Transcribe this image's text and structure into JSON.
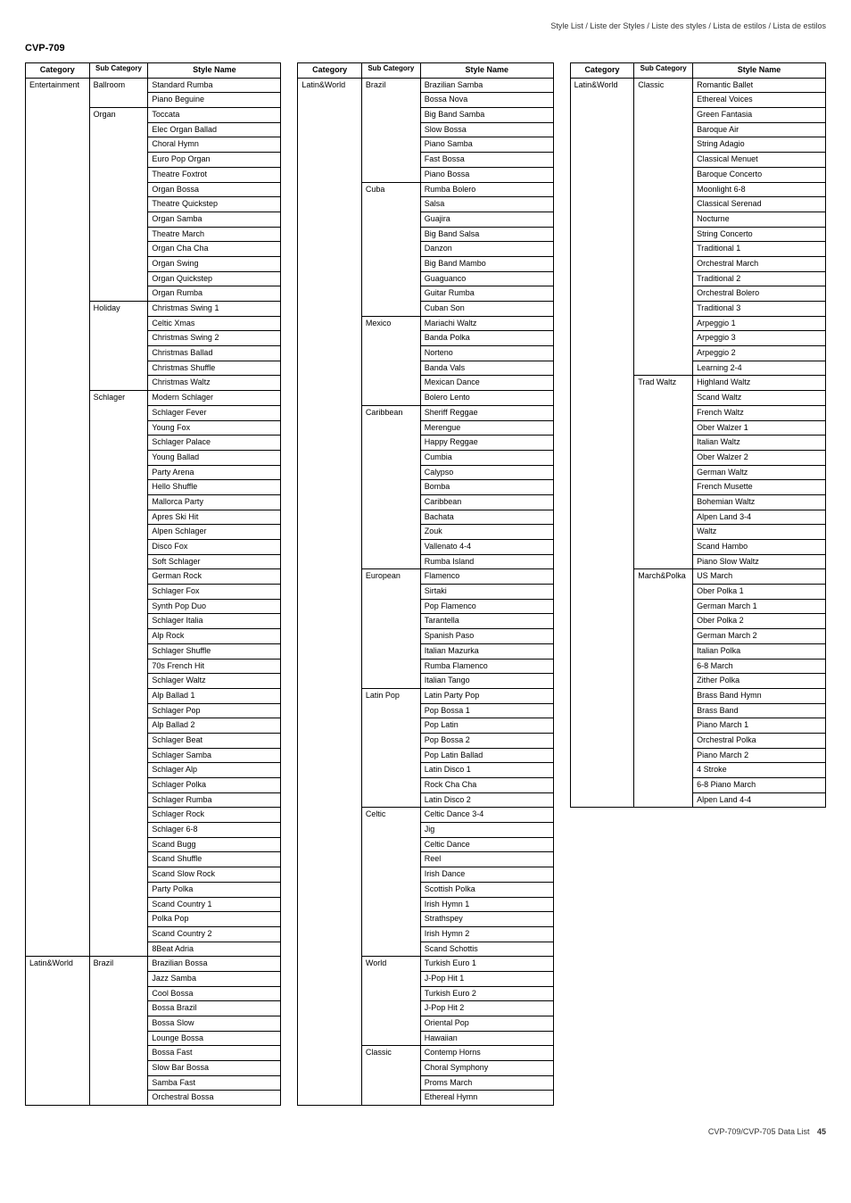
{
  "meta_line": "Style List / Liste der Styles / Liste des styles / Lista de estilos / Lista de estilos",
  "model": "CVP-709",
  "footer_text": "CVP-709/CVP-705 Data List",
  "page_number": "45",
  "headers": {
    "category": "Category",
    "sub": "Sub Category",
    "style": "Style Name"
  },
  "tables": [
    {
      "rows": [
        {
          "cat": "Entertainment",
          "sub": "Ballroom",
          "style": "Standard Rumba"
        },
        {
          "cat": "",
          "sub": "",
          "style": "Piano Beguine"
        },
        {
          "cat": "",
          "sub": "Organ",
          "style": "Toccata"
        },
        {
          "cat": "",
          "sub": "",
          "style": "Elec Organ Ballad"
        },
        {
          "cat": "",
          "sub": "",
          "style": "Choral Hymn"
        },
        {
          "cat": "",
          "sub": "",
          "style": "Euro Pop Organ"
        },
        {
          "cat": "",
          "sub": "",
          "style": "Theatre Foxtrot"
        },
        {
          "cat": "",
          "sub": "",
          "style": "Organ Bossa"
        },
        {
          "cat": "",
          "sub": "",
          "style": "Theatre Quickstep"
        },
        {
          "cat": "",
          "sub": "",
          "style": "Organ Samba"
        },
        {
          "cat": "",
          "sub": "",
          "style": "Theatre March"
        },
        {
          "cat": "",
          "sub": "",
          "style": "Organ Cha Cha"
        },
        {
          "cat": "",
          "sub": "",
          "style": "Organ Swing"
        },
        {
          "cat": "",
          "sub": "",
          "style": "Organ Quickstep"
        },
        {
          "cat": "",
          "sub": "",
          "style": "Organ Rumba"
        },
        {
          "cat": "",
          "sub": "Holiday",
          "style": "Christmas Swing 1"
        },
        {
          "cat": "",
          "sub": "",
          "style": "Celtic Xmas"
        },
        {
          "cat": "",
          "sub": "",
          "style": "Christmas Swing 2"
        },
        {
          "cat": "",
          "sub": "",
          "style": "Christmas Ballad"
        },
        {
          "cat": "",
          "sub": "",
          "style": "Christmas Shuffle"
        },
        {
          "cat": "",
          "sub": "",
          "style": "Christmas Waltz"
        },
        {
          "cat": "",
          "sub": "Schlager",
          "style": "Modern Schlager"
        },
        {
          "cat": "",
          "sub": "",
          "style": "Schlager Fever"
        },
        {
          "cat": "",
          "sub": "",
          "style": "Young Fox"
        },
        {
          "cat": "",
          "sub": "",
          "style": "Schlager Palace"
        },
        {
          "cat": "",
          "sub": "",
          "style": "Young Ballad"
        },
        {
          "cat": "",
          "sub": "",
          "style": "Party Arena"
        },
        {
          "cat": "",
          "sub": "",
          "style": "Hello Shuffle"
        },
        {
          "cat": "",
          "sub": "",
          "style": "Mallorca Party"
        },
        {
          "cat": "",
          "sub": "",
          "style": "Apres Ski Hit"
        },
        {
          "cat": "",
          "sub": "",
          "style": "Alpen Schlager"
        },
        {
          "cat": "",
          "sub": "",
          "style": "Disco Fox"
        },
        {
          "cat": "",
          "sub": "",
          "style": "Soft Schlager"
        },
        {
          "cat": "",
          "sub": "",
          "style": "German Rock"
        },
        {
          "cat": "",
          "sub": "",
          "style": "Schlager Fox"
        },
        {
          "cat": "",
          "sub": "",
          "style": "Synth Pop Duo"
        },
        {
          "cat": "",
          "sub": "",
          "style": "Schlager Italia"
        },
        {
          "cat": "",
          "sub": "",
          "style": "Alp Rock"
        },
        {
          "cat": "",
          "sub": "",
          "style": "Schlager Shuffle"
        },
        {
          "cat": "",
          "sub": "",
          "style": "70s French Hit"
        },
        {
          "cat": "",
          "sub": "",
          "style": "Schlager Waltz"
        },
        {
          "cat": "",
          "sub": "",
          "style": "Alp Ballad 1"
        },
        {
          "cat": "",
          "sub": "",
          "style": "Schlager Pop"
        },
        {
          "cat": "",
          "sub": "",
          "style": "Alp Ballad 2"
        },
        {
          "cat": "",
          "sub": "",
          "style": "Schlager Beat"
        },
        {
          "cat": "",
          "sub": "",
          "style": "Schlager Samba"
        },
        {
          "cat": "",
          "sub": "",
          "style": "Schlager Alp"
        },
        {
          "cat": "",
          "sub": "",
          "style": "Schlager Polka"
        },
        {
          "cat": "",
          "sub": "",
          "style": "Schlager Rumba"
        },
        {
          "cat": "",
          "sub": "",
          "style": "Schlager Rock"
        },
        {
          "cat": "",
          "sub": "",
          "style": "Schlager 6-8"
        },
        {
          "cat": "",
          "sub": "",
          "style": "Scand Bugg"
        },
        {
          "cat": "",
          "sub": "",
          "style": "Scand Shuffle"
        },
        {
          "cat": "",
          "sub": "",
          "style": "Scand Slow Rock"
        },
        {
          "cat": "",
          "sub": "",
          "style": "Party Polka"
        },
        {
          "cat": "",
          "sub": "",
          "style": "Scand Country 1"
        },
        {
          "cat": "",
          "sub": "",
          "style": "Polka Pop"
        },
        {
          "cat": "",
          "sub": "",
          "style": "Scand Country 2"
        },
        {
          "cat": "",
          "sub": "",
          "style": "8Beat Adria"
        },
        {
          "cat": "Latin&World",
          "sub": "Brazil",
          "style": "Brazilian Bossa"
        },
        {
          "cat": "",
          "sub": "",
          "style": "Jazz Samba"
        },
        {
          "cat": "",
          "sub": "",
          "style": "Cool Bossa"
        },
        {
          "cat": "",
          "sub": "",
          "style": "Bossa Brazil"
        },
        {
          "cat": "",
          "sub": "",
          "style": "Bossa Slow"
        },
        {
          "cat": "",
          "sub": "",
          "style": "Lounge Bossa"
        },
        {
          "cat": "",
          "sub": "",
          "style": "Bossa Fast"
        },
        {
          "cat": "",
          "sub": "",
          "style": "Slow Bar Bossa"
        },
        {
          "cat": "",
          "sub": "",
          "style": "Samba Fast"
        },
        {
          "cat": "",
          "sub": "",
          "style": "Orchestral Bossa"
        }
      ]
    },
    {
      "rows": [
        {
          "cat": "Latin&World",
          "sub": "Brazil",
          "style": "Brazilian Samba"
        },
        {
          "cat": "",
          "sub": "",
          "style": "Bossa Nova"
        },
        {
          "cat": "",
          "sub": "",
          "style": "Big Band Samba"
        },
        {
          "cat": "",
          "sub": "",
          "style": "Slow Bossa"
        },
        {
          "cat": "",
          "sub": "",
          "style": "Piano Samba"
        },
        {
          "cat": "",
          "sub": "",
          "style": "Fast Bossa"
        },
        {
          "cat": "",
          "sub": "",
          "style": "Piano Bossa"
        },
        {
          "cat": "",
          "sub": "Cuba",
          "style": "Rumba Bolero"
        },
        {
          "cat": "",
          "sub": "",
          "style": "Salsa"
        },
        {
          "cat": "",
          "sub": "",
          "style": "Guajira"
        },
        {
          "cat": "",
          "sub": "",
          "style": "Big Band Salsa"
        },
        {
          "cat": "",
          "sub": "",
          "style": "Danzon"
        },
        {
          "cat": "",
          "sub": "",
          "style": "Big Band Mambo"
        },
        {
          "cat": "",
          "sub": "",
          "style": "Guaguanco"
        },
        {
          "cat": "",
          "sub": "",
          "style": "Guitar Rumba"
        },
        {
          "cat": "",
          "sub": "",
          "style": "Cuban Son"
        },
        {
          "cat": "",
          "sub": "Mexico",
          "style": "Mariachi Waltz"
        },
        {
          "cat": "",
          "sub": "",
          "style": "Banda Polka"
        },
        {
          "cat": "",
          "sub": "",
          "style": "Norteno"
        },
        {
          "cat": "",
          "sub": "",
          "style": "Banda Vals"
        },
        {
          "cat": "",
          "sub": "",
          "style": "Mexican Dance"
        },
        {
          "cat": "",
          "sub": "",
          "style": "Bolero Lento"
        },
        {
          "cat": "",
          "sub": "Caribbean",
          "style": "Sheriff Reggae"
        },
        {
          "cat": "",
          "sub": "",
          "style": "Merengue"
        },
        {
          "cat": "",
          "sub": "",
          "style": "Happy Reggae"
        },
        {
          "cat": "",
          "sub": "",
          "style": "Cumbia"
        },
        {
          "cat": "",
          "sub": "",
          "style": "Calypso"
        },
        {
          "cat": "",
          "sub": "",
          "style": "Bomba"
        },
        {
          "cat": "",
          "sub": "",
          "style": "Caribbean"
        },
        {
          "cat": "",
          "sub": "",
          "style": "Bachata"
        },
        {
          "cat": "",
          "sub": "",
          "style": "Zouk"
        },
        {
          "cat": "",
          "sub": "",
          "style": "Vallenato 4-4"
        },
        {
          "cat": "",
          "sub": "",
          "style": "Rumba Island"
        },
        {
          "cat": "",
          "sub": "European",
          "style": "Flamenco"
        },
        {
          "cat": "",
          "sub": "",
          "style": "Sirtaki"
        },
        {
          "cat": "",
          "sub": "",
          "style": "Pop Flamenco"
        },
        {
          "cat": "",
          "sub": "",
          "style": "Tarantella"
        },
        {
          "cat": "",
          "sub": "",
          "style": "Spanish Paso"
        },
        {
          "cat": "",
          "sub": "",
          "style": "Italian Mazurka"
        },
        {
          "cat": "",
          "sub": "",
          "style": "Rumba Flamenco"
        },
        {
          "cat": "",
          "sub": "",
          "style": "Italian Tango"
        },
        {
          "cat": "",
          "sub": "Latin Pop",
          "style": "Latin Party Pop"
        },
        {
          "cat": "",
          "sub": "",
          "style": "Pop Bossa 1"
        },
        {
          "cat": "",
          "sub": "",
          "style": "Pop Latin"
        },
        {
          "cat": "",
          "sub": "",
          "style": "Pop Bossa 2"
        },
        {
          "cat": "",
          "sub": "",
          "style": "Pop Latin Ballad"
        },
        {
          "cat": "",
          "sub": "",
          "style": "Latin Disco 1"
        },
        {
          "cat": "",
          "sub": "",
          "style": "Rock Cha Cha"
        },
        {
          "cat": "",
          "sub": "",
          "style": "Latin Disco 2"
        },
        {
          "cat": "",
          "sub": "Celtic",
          "style": "Celtic Dance 3-4"
        },
        {
          "cat": "",
          "sub": "",
          "style": "Jig"
        },
        {
          "cat": "",
          "sub": "",
          "style": "Celtic Dance"
        },
        {
          "cat": "",
          "sub": "",
          "style": "Reel"
        },
        {
          "cat": "",
          "sub": "",
          "style": "Irish Dance"
        },
        {
          "cat": "",
          "sub": "",
          "style": "Scottish Polka"
        },
        {
          "cat": "",
          "sub": "",
          "style": "Irish Hymn 1"
        },
        {
          "cat": "",
          "sub": "",
          "style": "Strathspey"
        },
        {
          "cat": "",
          "sub": "",
          "style": "Irish Hymn 2"
        },
        {
          "cat": "",
          "sub": "",
          "style": "Scand Schottis"
        },
        {
          "cat": "",
          "sub": "World",
          "style": "Turkish Euro 1"
        },
        {
          "cat": "",
          "sub": "",
          "style": "J-Pop Hit 1"
        },
        {
          "cat": "",
          "sub": "",
          "style": "Turkish Euro 2"
        },
        {
          "cat": "",
          "sub": "",
          "style": "J-Pop Hit 2"
        },
        {
          "cat": "",
          "sub": "",
          "style": "Oriental Pop"
        },
        {
          "cat": "",
          "sub": "",
          "style": "Hawaiian"
        },
        {
          "cat": "",
          "sub": "Classic",
          "style": "Contemp Horns"
        },
        {
          "cat": "",
          "sub": "",
          "style": "Choral Symphony"
        },
        {
          "cat": "",
          "sub": "",
          "style": "Proms March"
        },
        {
          "cat": "",
          "sub": "",
          "style": "Ethereal Hymn"
        }
      ]
    },
    {
      "rows": [
        {
          "cat": "Latin&World",
          "sub": "Classic",
          "style": "Romantic Ballet"
        },
        {
          "cat": "",
          "sub": "",
          "style": "Ethereal Voices"
        },
        {
          "cat": "",
          "sub": "",
          "style": "Green Fantasia"
        },
        {
          "cat": "",
          "sub": "",
          "style": "Baroque Air"
        },
        {
          "cat": "",
          "sub": "",
          "style": "String Adagio"
        },
        {
          "cat": "",
          "sub": "",
          "style": "Classical Menuet"
        },
        {
          "cat": "",
          "sub": "",
          "style": "Baroque Concerto"
        },
        {
          "cat": "",
          "sub": "",
          "style": "Moonlight 6-8"
        },
        {
          "cat": "",
          "sub": "",
          "style": "Classical Serenad"
        },
        {
          "cat": "",
          "sub": "",
          "style": "Nocturne"
        },
        {
          "cat": "",
          "sub": "",
          "style": "String Concerto"
        },
        {
          "cat": "",
          "sub": "",
          "style": "Traditional 1"
        },
        {
          "cat": "",
          "sub": "",
          "style": "Orchestral March"
        },
        {
          "cat": "",
          "sub": "",
          "style": "Traditional 2"
        },
        {
          "cat": "",
          "sub": "",
          "style": "Orchestral Bolero"
        },
        {
          "cat": "",
          "sub": "",
          "style": "Traditional 3"
        },
        {
          "cat": "",
          "sub": "",
          "style": "Arpeggio 1"
        },
        {
          "cat": "",
          "sub": "",
          "style": "Arpeggio 3"
        },
        {
          "cat": "",
          "sub": "",
          "style": "Arpeggio 2"
        },
        {
          "cat": "",
          "sub": "",
          "style": "Learning 2-4"
        },
        {
          "cat": "",
          "sub": "Trad Waltz",
          "style": "Highland Waltz"
        },
        {
          "cat": "",
          "sub": "",
          "style": "Scand Waltz"
        },
        {
          "cat": "",
          "sub": "",
          "style": "French Waltz"
        },
        {
          "cat": "",
          "sub": "",
          "style": "Ober Walzer 1"
        },
        {
          "cat": "",
          "sub": "",
          "style": "Italian Waltz"
        },
        {
          "cat": "",
          "sub": "",
          "style": "Ober Walzer 2"
        },
        {
          "cat": "",
          "sub": "",
          "style": "German Waltz"
        },
        {
          "cat": "",
          "sub": "",
          "style": "French Musette"
        },
        {
          "cat": "",
          "sub": "",
          "style": "Bohemian Waltz"
        },
        {
          "cat": "",
          "sub": "",
          "style": "Alpen Land 3-4"
        },
        {
          "cat": "",
          "sub": "",
          "style": "Waltz"
        },
        {
          "cat": "",
          "sub": "",
          "style": "Scand Hambo"
        },
        {
          "cat": "",
          "sub": "",
          "style": "Piano Slow Waltz"
        },
        {
          "cat": "",
          "sub": "March&Polka",
          "style": "US March"
        },
        {
          "cat": "",
          "sub": "",
          "style": "Ober Polka 1"
        },
        {
          "cat": "",
          "sub": "",
          "style": "German March 1"
        },
        {
          "cat": "",
          "sub": "",
          "style": "Ober Polka 2"
        },
        {
          "cat": "",
          "sub": "",
          "style": "German March 2"
        },
        {
          "cat": "",
          "sub": "",
          "style": "Italian Polka"
        },
        {
          "cat": "",
          "sub": "",
          "style": "6-8 March"
        },
        {
          "cat": "",
          "sub": "",
          "style": "Zither Polka"
        },
        {
          "cat": "",
          "sub": "",
          "style": "Brass Band Hymn"
        },
        {
          "cat": "",
          "sub": "",
          "style": "Brass Band"
        },
        {
          "cat": "",
          "sub": "",
          "style": "Piano March 1"
        },
        {
          "cat": "",
          "sub": "",
          "style": "Orchestral Polka"
        },
        {
          "cat": "",
          "sub": "",
          "style": "Piano March 2"
        },
        {
          "cat": "",
          "sub": "",
          "style": "4 Stroke"
        },
        {
          "cat": "",
          "sub": "",
          "style": "6-8 Piano March"
        },
        {
          "cat": "",
          "sub": "",
          "style": "Alpen Land 4-4"
        }
      ]
    }
  ]
}
